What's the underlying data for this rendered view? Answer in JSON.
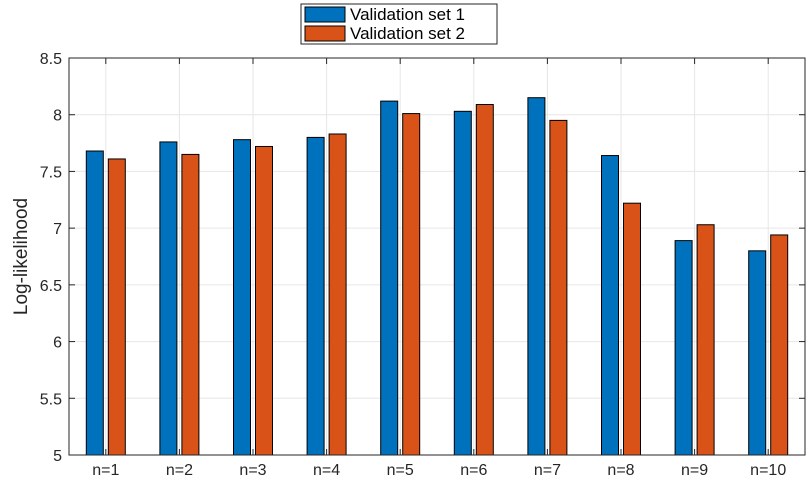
{
  "chart_data": {
    "type": "bar",
    "categories": [
      "n=1",
      "n=2",
      "n=3",
      "n=4",
      "n=5",
      "n=6",
      "n=7",
      "n=8",
      "n=9",
      "n=10"
    ],
    "series": [
      {
        "name": "Validation set 1",
        "color": "#0072BD",
        "values": [
          7.68,
          7.76,
          7.78,
          7.8,
          8.12,
          8.03,
          8.15,
          7.64,
          6.89,
          6.8
        ]
      },
      {
        "name": "Validation set 2",
        "color": "#D95319",
        "values": [
          7.61,
          7.65,
          7.72,
          7.83,
          8.01,
          8.09,
          7.95,
          7.22,
          7.03,
          6.94
        ]
      }
    ],
    "title": "",
    "xlabel": "",
    "ylabel": "Log-likelihood",
    "ylim": [
      5,
      8.5
    ],
    "yticks": [
      "5",
      "5.5",
      "6",
      "6.5",
      "7",
      "7.5",
      "8",
      "8.5"
    ],
    "grid": true,
    "legend_position": "top-center"
  }
}
